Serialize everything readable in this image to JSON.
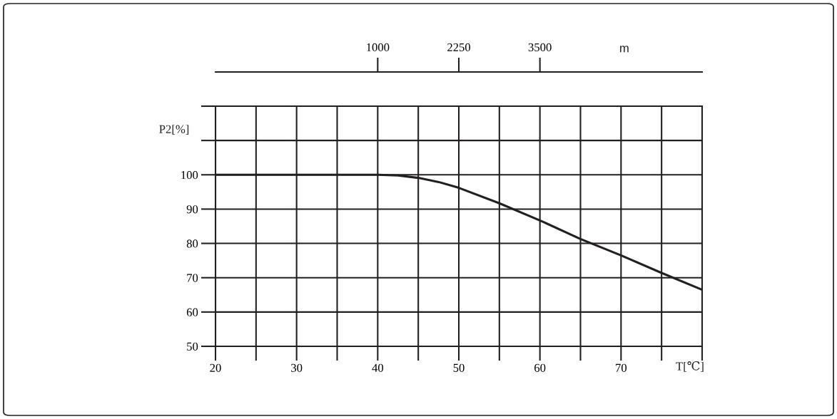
{
  "chart_data": {
    "type": "line",
    "xlabel": "T[℃]",
    "ylabel": "P2[%]",
    "x2label": "m",
    "x": [
      20,
      40,
      42.5,
      45,
      47.5,
      50,
      55,
      60,
      65,
      70,
      75,
      80
    ],
    "series": [
      {
        "color": "#231f20",
        "values": [
          100,
          100,
          99.8,
          99.1,
          97.9,
          96.2,
          91.7,
          86.7,
          81.3,
          76.5,
          71.4,
          66.5
        ]
      }
    ],
    "xlim": [
      20,
      80
    ],
    "ylim": [
      50,
      120
    ],
    "xticks": [
      20,
      {
        "value": 25,
        "label": null
      },
      30,
      {
        "value": 35,
        "label": null
      },
      40,
      {
        "value": 45,
        "label": null
      },
      50,
      {
        "value": 55,
        "label": null
      },
      60,
      {
        "value": 65,
        "label": null
      },
      70,
      {
        "value": 75,
        "label": null
      },
      {
        "value": 80,
        "label": null
      }
    ],
    "yticks": [
      50,
      60,
      70,
      80,
      90,
      100,
      {
        "value": 110,
        "label": null
      },
      {
        "value": 120,
        "label": null
      }
    ],
    "x2lim": [
      -1500,
      6000
    ],
    "x2ticks": [
      1000,
      2250,
      3500
    ],
    "grid": true
  }
}
